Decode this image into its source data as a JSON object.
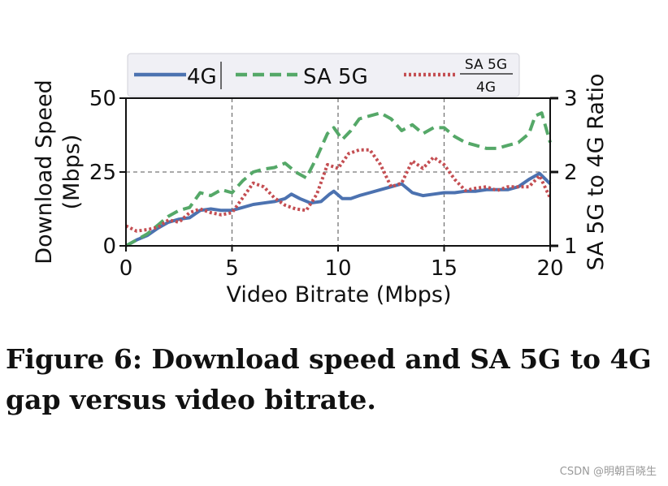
{
  "chart_data": {
    "type": "line",
    "xlabel": "Video Bitrate (Mbps)",
    "ylabel": "Download Speed (Mbps)",
    "ylabel_lines": [
      "Download Speed",
      "(Mbps)"
    ],
    "y2label": "SA 5G to 4G Ratio",
    "xlim": [
      0,
      20
    ],
    "ylim": [
      0,
      50
    ],
    "y2lim": [
      1,
      3
    ],
    "x_ticks": [
      0,
      5,
      10,
      15,
      20
    ],
    "y_ticks": [
      0,
      25,
      50
    ],
    "y2_ticks": [
      1,
      2,
      3
    ],
    "grid": "dashed, at x=5,10,15 and y=25",
    "legend": "top",
    "series": [
      {
        "name": "4G",
        "axis": "left",
        "color": "#4c72b0",
        "style": "solid",
        "x": [
          0,
          0.5,
          1,
          1.5,
          2,
          2.5,
          3,
          3.5,
          4,
          4.5,
          5,
          5.5,
          6,
          6.5,
          7,
          7.5,
          7.8,
          8.2,
          8.7,
          9.2,
          9.6,
          9.8,
          10.2,
          10.6,
          11,
          11.5,
          12,
          12.5,
          13,
          13.5,
          14,
          14.5,
          15,
          15.5,
          16,
          16.5,
          17,
          17.5,
          18,
          18.5,
          19,
          19.5,
          20
        ],
        "y": [
          0,
          2,
          3.5,
          6,
          8,
          9,
          9.5,
          12,
          12.5,
          12,
          12,
          13,
          14,
          14.5,
          15,
          16,
          17.5,
          16,
          14.5,
          15,
          17.5,
          18.5,
          16,
          16,
          17,
          18,
          19,
          20,
          21,
          18,
          17,
          17.5,
          18,
          18,
          18.5,
          18.5,
          19,
          19,
          19,
          20,
          22.5,
          24.5,
          21
        ]
      },
      {
        "name": "SA 5G",
        "axis": "left",
        "color": "#55a868",
        "style": "dashed",
        "x": [
          0,
          0.5,
          1,
          1.5,
          2,
          2.5,
          3,
          3.5,
          4,
          4.5,
          5,
          5.5,
          6,
          6.5,
          7,
          7.5,
          8,
          8.5,
          9,
          9.5,
          9.8,
          10.2,
          10.6,
          11,
          11.5,
          12,
          12.5,
          13,
          13.5,
          14,
          14.5,
          15,
          15.5,
          16,
          16.5,
          17,
          17.5,
          18,
          18.5,
          19,
          19.3,
          19.6,
          20
        ],
        "y": [
          0,
          2,
          4,
          7,
          10,
          12,
          13,
          18,
          17,
          19,
          18,
          22,
          25,
          26,
          26.5,
          28,
          25,
          23,
          30,
          38,
          40,
          36,
          39,
          43,
          44,
          45,
          43,
          39,
          41,
          38,
          40,
          40,
          37,
          35,
          34,
          33,
          33,
          34,
          35,
          38,
          44,
          45,
          35
        ]
      },
      {
        "name": "SA 5G / 4G",
        "axis": "right",
        "color": "#c44e52",
        "style": "dotted",
        "x": [
          0,
          0.5,
          1,
          1.5,
          2,
          2.5,
          3,
          3.5,
          4,
          4.5,
          5,
          5.5,
          6,
          6.5,
          7,
          7.5,
          8,
          8.5,
          9,
          9.5,
          10,
          10.5,
          11,
          11.5,
          12,
          12.5,
          13,
          13.5,
          14,
          14.5,
          15,
          15.5,
          16,
          16.5,
          17,
          17.5,
          18,
          18.5,
          19,
          19.5,
          20
        ],
        "y": [
          1.27,
          1.2,
          1.22,
          1.25,
          1.35,
          1.32,
          1.45,
          1.5,
          1.45,
          1.42,
          1.45,
          1.65,
          1.85,
          1.8,
          1.65,
          1.55,
          1.5,
          1.48,
          1.7,
          2.1,
          2.05,
          2.25,
          2.3,
          2.3,
          2.1,
          1.8,
          1.85,
          2.15,
          2.05,
          2.2,
          2.1,
          1.9,
          1.75,
          1.78,
          1.8,
          1.75,
          1.8,
          1.8,
          1.8,
          1.95,
          1.65
        ]
      }
    ]
  },
  "legend": {
    "items": [
      "4G",
      "SA 5G"
    ],
    "ratio_numerator": "SA 5G",
    "ratio_denominator": "4G"
  },
  "caption": "Figure 6: Download speed and SA 5G to 4G gap versus video bitrate.",
  "watermark": "CSDN @明朝百晓生"
}
